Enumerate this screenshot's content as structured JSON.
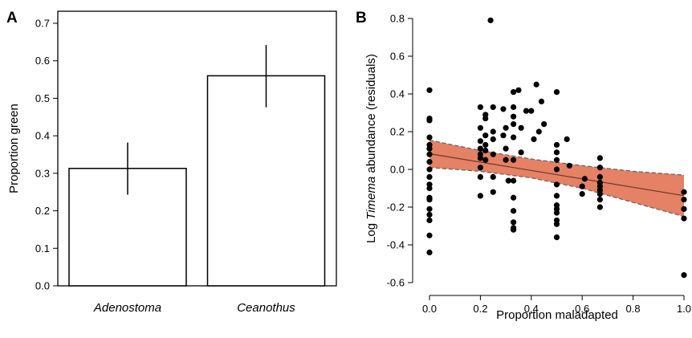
{
  "chart_data": [
    {
      "type": "bar",
      "panel_label": "A",
      "categories": [
        "Adenostoma",
        "Ceanothus"
      ],
      "values": [
        0.313,
        0.56
      ],
      "error_bars": [
        [
          0.243,
          0.382
        ],
        [
          0.476,
          0.642
        ]
      ],
      "title": "",
      "xlabel": "",
      "ylabel": "Proportion green",
      "ylim": [
        0,
        0.7
      ],
      "yticks": [
        0.0,
        0.1,
        0.2,
        0.3,
        0.4,
        0.5,
        0.6,
        0.7
      ],
      "ytick_labels": [
        "0.0",
        "0.1",
        "0.2",
        "0.3",
        "0.4",
        "0.5",
        "0.6",
        "0.7"
      ],
      "bar_fill": "#ffffff",
      "bar_stroke": "#000000",
      "grid": false,
      "legend": "none"
    },
    {
      "type": "scatter",
      "panel_label": "B",
      "title": "",
      "xlabel": "Proportion maladapted",
      "ylabel": "Log Timema abundance (residuals)",
      "ylabel_parts": [
        "Log ",
        "Timema",
        " abundance (residuals)"
      ],
      "xlim": [
        0,
        1
      ],
      "ylim": [
        -0.6,
        0.8
      ],
      "xticks": [
        0.0,
        0.2,
        0.4,
        0.6,
        0.8,
        1.0
      ],
      "xtick_labels": [
        "0.0",
        "0.2",
        "0.4",
        "0.6",
        "0.8",
        "1.0"
      ],
      "yticks": [
        -0.6,
        -0.4,
        -0.2,
        0.0,
        0.2,
        0.4,
        0.6,
        0.8
      ],
      "ytick_labels": [
        "-0.6",
        "-0.4",
        "-0.2",
        "0.0",
        "0.2",
        "0.4",
        "0.6",
        "0.8"
      ],
      "points": [
        [
          0.0,
          0.42
        ],
        [
          0.0,
          0.27
        ],
        [
          0.0,
          0.26
        ],
        [
          0.0,
          0.17
        ],
        [
          0.0,
          0.13
        ],
        [
          0.0,
          0.11
        ],
        [
          0.0,
          0.08
        ],
        [
          0.0,
          0.04
        ],
        [
          0.0,
          0.0
        ],
        [
          0.0,
          -0.04
        ],
        [
          0.0,
          -0.08
        ],
        [
          0.0,
          -0.1
        ],
        [
          0.0,
          -0.15
        ],
        [
          0.0,
          -0.16
        ],
        [
          0.0,
          -0.21
        ],
        [
          0.0,
          -0.24
        ],
        [
          0.0,
          -0.27
        ],
        [
          0.0,
          -0.35
        ],
        [
          0.0,
          -0.44
        ],
        [
          0.2,
          0.33
        ],
        [
          0.2,
          0.22
        ],
        [
          0.2,
          0.15
        ],
        [
          0.2,
          0.11
        ],
        [
          0.2,
          0.08
        ],
        [
          0.2,
          0.06
        ],
        [
          0.2,
          0.01
        ],
        [
          0.2,
          -0.04
        ],
        [
          0.2,
          -0.14
        ],
        [
          0.22,
          0.29
        ],
        [
          0.22,
          0.27
        ],
        [
          0.22,
          0.18
        ],
        [
          0.22,
          0.13
        ],
        [
          0.22,
          0.1
        ],
        [
          0.22,
          0.05
        ],
        [
          0.24,
          0.79
        ],
        [
          0.25,
          0.33
        ],
        [
          0.25,
          0.2
        ],
        [
          0.25,
          0.16
        ],
        [
          0.25,
          0.08
        ],
        [
          0.25,
          -0.04
        ],
        [
          0.25,
          -0.12
        ],
        [
          0.29,
          0.32
        ],
        [
          0.29,
          0.18
        ],
        [
          0.3,
          0.22
        ],
        [
          0.3,
          0.11
        ],
        [
          0.3,
          0.05
        ],
        [
          0.31,
          -0.06
        ],
        [
          0.33,
          0.41
        ],
        [
          0.33,
          0.33
        ],
        [
          0.33,
          0.28
        ],
        [
          0.33,
          0.24
        ],
        [
          0.33,
          0.17
        ],
        [
          0.33,
          0.05
        ],
        [
          0.33,
          -0.06
        ],
        [
          0.33,
          -0.15
        ],
        [
          0.33,
          -0.22
        ],
        [
          0.33,
          -0.28
        ],
        [
          0.33,
          -0.31
        ],
        [
          0.33,
          -0.32
        ],
        [
          0.35,
          0.42
        ],
        [
          0.36,
          0.22
        ],
        [
          0.36,
          0.09
        ],
        [
          0.38,
          0.31
        ],
        [
          0.4,
          0.31
        ],
        [
          0.41,
          0.16
        ],
        [
          0.42,
          0.45
        ],
        [
          0.43,
          0.2
        ],
        [
          0.44,
          0.36
        ],
        [
          0.45,
          0.24
        ],
        [
          0.5,
          0.41
        ],
        [
          0.5,
          0.13
        ],
        [
          0.5,
          0.09
        ],
        [
          0.5,
          0.05
        ],
        [
          0.5,
          0.0
        ],
        [
          0.5,
          -0.08
        ],
        [
          0.5,
          -0.14
        ],
        [
          0.5,
          -0.19
        ],
        [
          0.5,
          -0.21
        ],
        [
          0.5,
          -0.23
        ],
        [
          0.5,
          -0.27
        ],
        [
          0.5,
          -0.29
        ],
        [
          0.5,
          -0.36
        ],
        [
          0.54,
          0.16
        ],
        [
          0.55,
          0.02
        ],
        [
          0.6,
          -0.09
        ],
        [
          0.6,
          -0.13
        ],
        [
          0.61,
          -0.05
        ],
        [
          0.67,
          0.06
        ],
        [
          0.67,
          0.01
        ],
        [
          0.67,
          -0.04
        ],
        [
          0.67,
          -0.07
        ],
        [
          0.67,
          -0.09
        ],
        [
          0.67,
          -0.11
        ],
        [
          0.67,
          -0.13
        ],
        [
          0.67,
          -0.16
        ],
        [
          0.67,
          -0.2
        ],
        [
          1.0,
          -0.12
        ],
        [
          1.0,
          -0.16
        ],
        [
          1.0,
          -0.21
        ],
        [
          1.0,
          -0.26
        ],
        [
          1.0,
          -0.56
        ]
      ],
      "fit_line": [
        [
          0.0,
          0.083
        ],
        [
          1.0,
          -0.139
        ]
      ],
      "ci_upper": [
        [
          0.0,
          0.155
        ],
        [
          0.2,
          0.1
        ],
        [
          0.4,
          0.055
        ],
        [
          0.6,
          0.02
        ],
        [
          0.8,
          -0.01
        ],
        [
          1.0,
          -0.03
        ]
      ],
      "ci_lower": [
        [
          0.0,
          0.01
        ],
        [
          0.2,
          -0.01
        ],
        [
          0.4,
          -0.045
        ],
        [
          0.6,
          -0.1
        ],
        [
          0.8,
          -0.175
        ],
        [
          1.0,
          -0.25
        ]
      ],
      "point_color": "#000000",
      "ci_fill": "#e58165",
      "grid": false,
      "legend": "none"
    }
  ]
}
